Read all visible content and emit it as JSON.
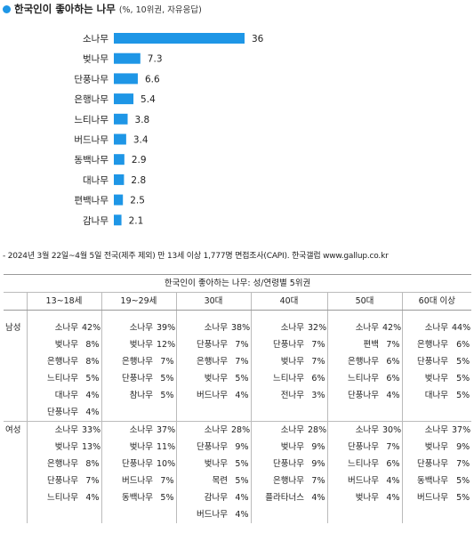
{
  "header": {
    "title": "한국인이 좋아하는 나무",
    "subtitle": "(%, 10위권, 자유응답)"
  },
  "chart_data": {
    "type": "bar",
    "orientation": "horizontal",
    "categories": [
      "소나무",
      "벚나무",
      "단풍나무",
      "은행나무",
      "느티나무",
      "버드나무",
      "동백나무",
      "대나무",
      "편백나무",
      "감나무"
    ],
    "values": [
      36,
      7.3,
      6.6,
      5.4,
      3.8,
      3.4,
      2.9,
      2.8,
      2.5,
      2.1
    ],
    "value_labels": [
      "36",
      "7.3",
      "6.6",
      "5.4",
      "3.8",
      "3.4",
      "2.9",
      "2.8",
      "2.5",
      "2.1"
    ],
    "bar_color": "#1e96e6",
    "grid": false
  },
  "note": "- 2024년 3월 22일~4월 5일 전국(제주 제외) 만 13세 이상 1,777명 면접조사(CAPI). 한국갤럽 www.gallup.co.kr",
  "table": {
    "caption": "한국인이 좋아하는 나무: 성/연령별 5위권",
    "columns": [
      "13~18세",
      "19~29세",
      "30대",
      "40대",
      "50대",
      "60대 이상"
    ],
    "groups": [
      {
        "label": "남성",
        "rows": [
          [
            [
              "소나무",
              "42%"
            ],
            [
              "소나무",
              "39%"
            ],
            [
              "소나무",
              "38%"
            ],
            [
              "소나무",
              "32%"
            ],
            [
              "소나무",
              "42%"
            ],
            [
              "소나무",
              "44%"
            ]
          ],
          [
            [
              "벚나무",
              "8%"
            ],
            [
              "벚나무",
              "12%"
            ],
            [
              "단풍나무",
              "7%"
            ],
            [
              "단풍나무",
              "7%"
            ],
            [
              "편백",
              "7%"
            ],
            [
              "은행나무",
              "6%"
            ]
          ],
          [
            [
              "은행나무",
              "8%"
            ],
            [
              "은행나무",
              "7%"
            ],
            [
              "은행나무",
              "7%"
            ],
            [
              "벚나무",
              "7%"
            ],
            [
              "은행나무",
              "6%"
            ],
            [
              "단풍나무",
              "5%"
            ]
          ],
          [
            [
              "느티나무",
              "5%"
            ],
            [
              "단풍나무",
              "5%"
            ],
            [
              "벚나무",
              "5%"
            ],
            [
              "느티나무",
              "6%"
            ],
            [
              "느티나무",
              "6%"
            ],
            [
              "벚나무",
              "5%"
            ]
          ],
          [
            [
              "대나무",
              "4%"
            ],
            [
              "참나무",
              "5%"
            ],
            [
              "버드나무",
              "4%"
            ],
            [
              "전나무",
              "3%"
            ],
            [
              "단풍나무",
              "4%"
            ],
            [
              "대나무",
              "5%"
            ]
          ],
          [
            [
              "단풍나무",
              "4%"
            ],
            [
              "",
              ""
            ],
            [
              "",
              ""
            ],
            [
              "",
              ""
            ],
            [
              "",
              ""
            ],
            [
              "",
              ""
            ]
          ]
        ]
      },
      {
        "label": "여성",
        "rows": [
          [
            [
              "소나무",
              "33%"
            ],
            [
              "소나무",
              "37%"
            ],
            [
              "소나무",
              "28%"
            ],
            [
              "소나무",
              "28%"
            ],
            [
              "소나무",
              "30%"
            ],
            [
              "소나무",
              "37%"
            ]
          ],
          [
            [
              "벚나무",
              "13%"
            ],
            [
              "벚나무",
              "11%"
            ],
            [
              "단풍나무",
              "9%"
            ],
            [
              "벚나무",
              "9%"
            ],
            [
              "단풍나무",
              "7%"
            ],
            [
              "벚나무",
              "9%"
            ]
          ],
          [
            [
              "은행나무",
              "8%"
            ],
            [
              "단풍나무",
              "10%"
            ],
            [
              "벚나무",
              "5%"
            ],
            [
              "단풍나무",
              "9%"
            ],
            [
              "느티나무",
              "6%"
            ],
            [
              "단풍나무",
              "7%"
            ]
          ],
          [
            [
              "단풍나무",
              "7%"
            ],
            [
              "버드나무",
              "7%"
            ],
            [
              "목련",
              "5%"
            ],
            [
              "은행나무",
              "7%"
            ],
            [
              "버드나무",
              "4%"
            ],
            [
              "동백나무",
              "5%"
            ]
          ],
          [
            [
              "느티나무",
              "4%"
            ],
            [
              "동백나무",
              "5%"
            ],
            [
              "감나무",
              "4%"
            ],
            [
              "플라타너스",
              "4%"
            ],
            [
              "벚나무",
              "4%"
            ],
            [
              "버드나무",
              "5%"
            ]
          ],
          [
            [
              "",
              ""
            ],
            [
              "",
              ""
            ],
            [
              "버드나무",
              "4%"
            ],
            [
              "",
              ""
            ],
            [
              "",
              ""
            ],
            [
              "",
              ""
            ]
          ]
        ]
      }
    ]
  }
}
